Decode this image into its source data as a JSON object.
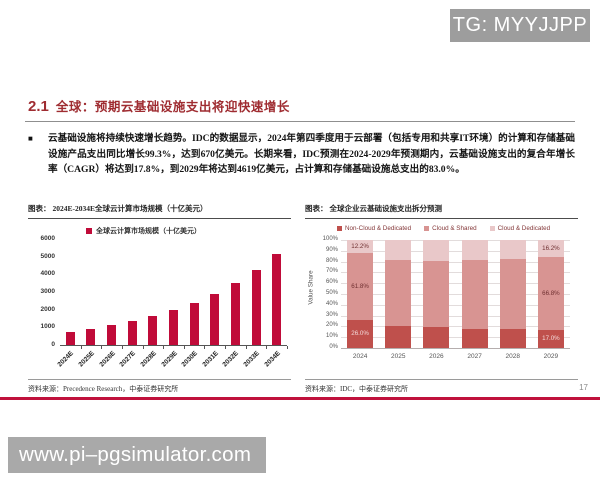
{
  "page": {
    "tg_watermark": "TG: MYYJJPP",
    "url_watermark": "www.pi–pgsimulator.com",
    "page_number": "17",
    "accent_color": "#c0113c"
  },
  "header": {
    "section_number": "2.1",
    "title": "全球：预期云基础设施支出将迎快速增长"
  },
  "body": {
    "bullet": "■",
    "paragraph": "云基础设施将持续快速增长趋势。IDC的数据显示，2024年第四季度用于云部署（包括专用和共享IT环境）的计算和存储基础设施产品支出同比增长99.3%，达到670亿美元。长期来看，IDC预测在2024-2029年预测期内，云基础设施支出的复合年增长率（CAGR）将达到17.8%，到2029年将达到4619亿美元，占计算和存储基础设施总支出的83.0%。"
  },
  "left_panel": {
    "caption_prefix": "图表：",
    "caption": "2024E-2034E全球云计算市场规模（十亿美元）",
    "source": "资料来源：Precedence Research，中泰证券研究所"
  },
  "right_panel": {
    "caption_prefix": "图表：",
    "caption": "全球企业云基础设施支出拆分预测",
    "source": "资料来源：IDC，中泰证券研究所"
  },
  "chart_data": [
    {
      "type": "bar",
      "title": "2024E-2034E全球云计算市场规模（十亿美元）",
      "legend": [
        "全球云计算市场规模（十亿美元）"
      ],
      "categories": [
        "2024E",
        "2025E",
        "2026E",
        "2027E",
        "2028E",
        "2029E",
        "2030E",
        "2031E",
        "2032E",
        "2033E",
        "2034E"
      ],
      "values": [
        750,
        910,
        1105,
        1340,
        1625,
        1970,
        2390,
        2890,
        3505,
        4250,
        5150
      ],
      "ylim": [
        0,
        6000
      ],
      "ytick_step": 1000,
      "bar_color": "#c00b39",
      "grid": false,
      "legend_position": "top"
    },
    {
      "type": "stacked-bar-100",
      "title": "全球企业云基础设施支出拆分预测",
      "ylabel": "Value Share",
      "categories": [
        "2024",
        "2025",
        "2026",
        "2027",
        "2028",
        "2029"
      ],
      "series": [
        {
          "name": "Non-Cloud & Dedicated",
          "color": "#bf504c",
          "values": [
            26.0,
            20.0,
            19.0,
            18.0,
            17.5,
            17.0
          ]
        },
        {
          "name": "Cloud & Shared",
          "color": "#d89492",
          "values": [
            61.8,
            61.5,
            62.0,
            63.5,
            65.0,
            66.8
          ]
        },
        {
          "name": "Cloud & Dedicated",
          "color": "#e9c8c9",
          "values": [
            12.2,
            18.5,
            19.0,
            18.5,
            17.5,
            16.2
          ]
        }
      ],
      "data_labels": [
        [
          "26.0%",
          "61.8%",
          "12.2%"
        ],
        null,
        null,
        null,
        null,
        [
          "17.0%",
          "66.8%",
          "16.2%"
        ]
      ],
      "ylim": [
        0,
        100
      ],
      "ytick_step": 10,
      "ytick_suffix": "%",
      "grid": true,
      "legend_position": "top"
    }
  ]
}
